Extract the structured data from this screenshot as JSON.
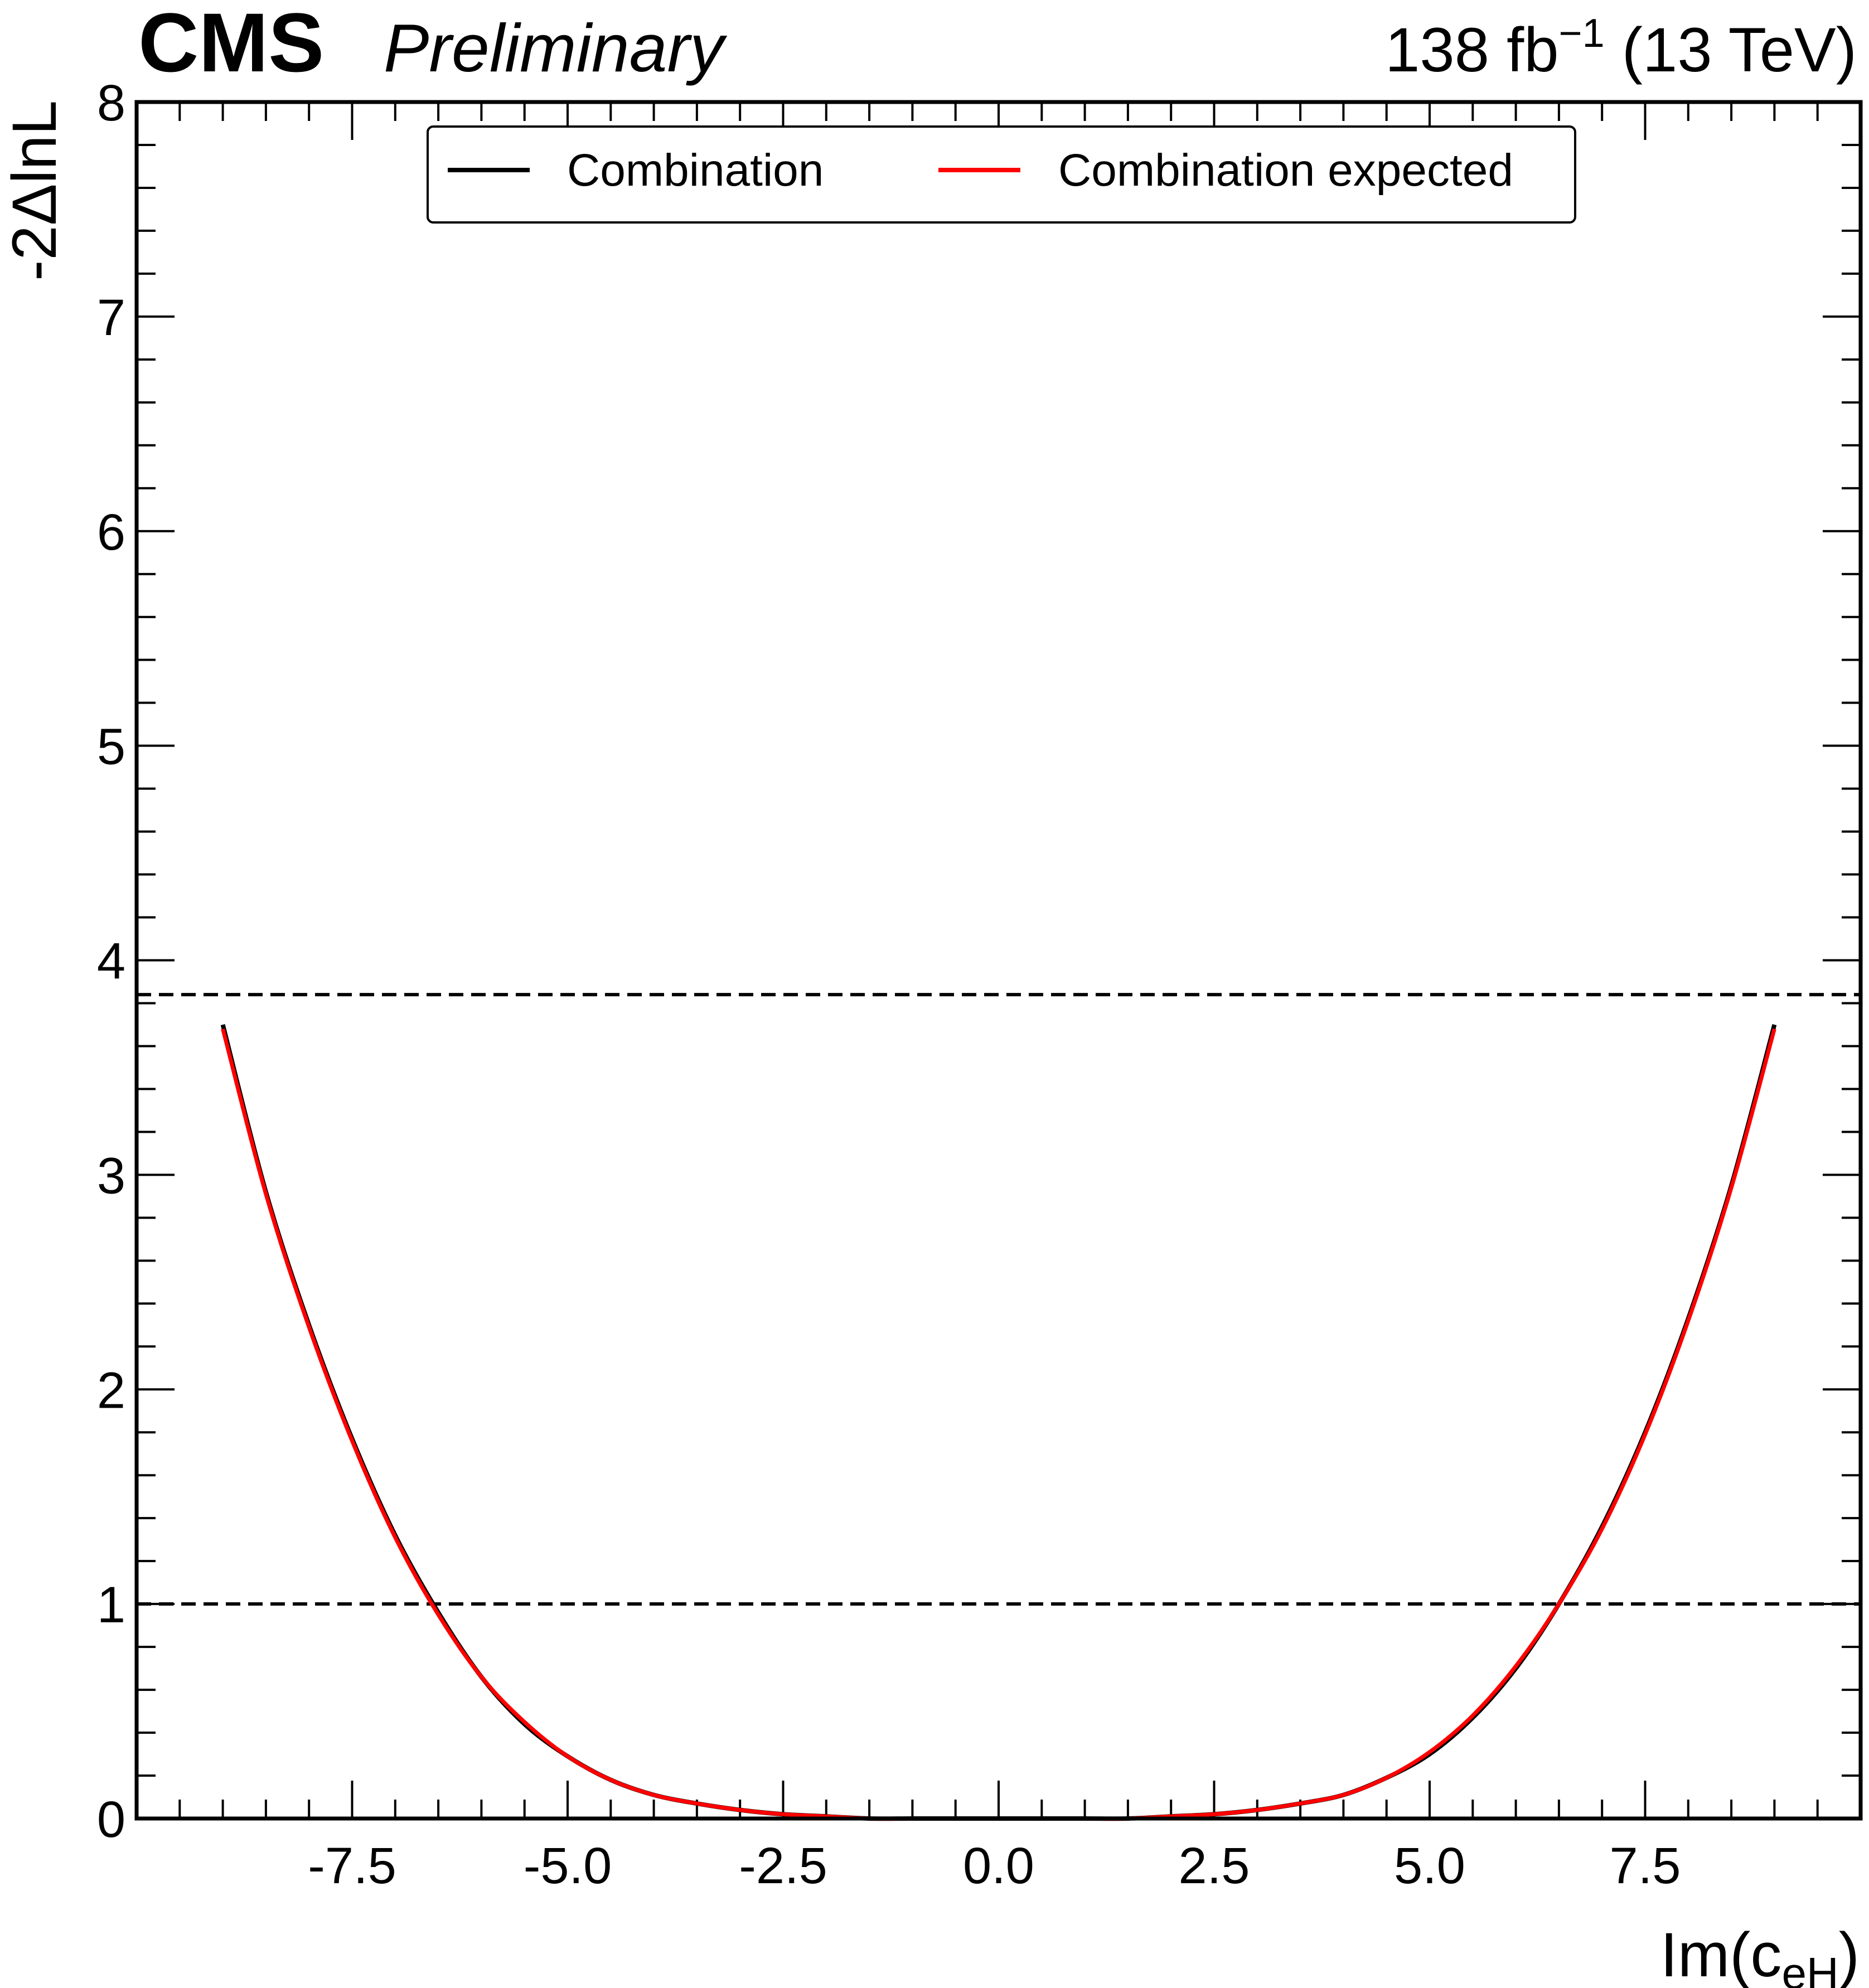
{
  "header": {
    "experiment": "CMS",
    "status": "Preliminary",
    "lumi_prefix": "138 fb",
    "lumi_exponent": "−1",
    "lumi_suffix": " (13 TeV)"
  },
  "chart_data": {
    "type": "line",
    "xlabel": {
      "main": "Im(c",
      "sub": "eH",
      "close": ")"
    },
    "ylabel": "-2ΔlnL",
    "xlim": [
      -10,
      10
    ],
    "ylim": [
      0,
      8
    ],
    "xticks": [
      -7.5,
      -5.0,
      -2.5,
      0.0,
      2.5,
      5.0,
      7.5
    ],
    "xtick_labels": [
      "-7.5",
      "-5.0",
      "-2.5",
      "0.0",
      "2.5",
      "5.0",
      "7.5"
    ],
    "yticks": [
      0,
      1,
      2,
      3,
      4,
      5,
      6,
      7,
      8
    ],
    "ytick_labels": [
      "0",
      "1",
      "2",
      "3",
      "4",
      "5",
      "6",
      "7",
      "8"
    ],
    "grid": false,
    "legend_position": "top-center",
    "reference_lines": [
      {
        "y": 1.0,
        "style": "dashed",
        "color": "#000000"
      },
      {
        "y": 3.84,
        "style": "dashed",
        "color": "#000000"
      }
    ],
    "series": [
      {
        "name": "Combination",
        "color": "#000000",
        "x": [
          -9.0,
          -8.5,
          -8.0,
          -7.5,
          -7.0,
          -6.5,
          -6.0,
          -5.5,
          -5.0,
          -4.5,
          -4.0,
          -3.5,
          -3.0,
          -2.5,
          -2.0,
          -1.5,
          -1.0,
          -0.5,
          0.0,
          0.5,
          1.0,
          1.5,
          2.0,
          2.5,
          3.0,
          3.5,
          4.0,
          4.5,
          5.0,
          5.5,
          6.0,
          6.5,
          7.0,
          7.5,
          8.0,
          8.5,
          9.0
        ],
        "y": [
          3.7,
          2.92,
          2.3,
          1.77,
          1.32,
          0.96,
          0.66,
          0.44,
          0.29,
          0.18,
          0.11,
          0.07,
          0.04,
          0.02,
          0.01,
          0.0,
          0.0,
          0.0,
          0.0,
          0.0,
          0.0,
          0.0,
          0.01,
          0.02,
          0.04,
          0.07,
          0.11,
          0.19,
          0.3,
          0.47,
          0.7,
          1.0,
          1.36,
          1.8,
          2.33,
          2.95,
          3.7
        ]
      },
      {
        "name": "Combination expected",
        "color": "#ff0000",
        "x": [
          -9.0,
          -8.5,
          -8.0,
          -7.5,
          -7.0,
          -6.5,
          -6.0,
          -5.5,
          -5.0,
          -4.5,
          -4.0,
          -3.5,
          -3.0,
          -2.5,
          -2.0,
          -1.5,
          -1.0,
          -0.5,
          0.0,
          0.5,
          1.0,
          1.5,
          2.0,
          2.5,
          3.0,
          3.5,
          4.0,
          4.5,
          5.0,
          5.5,
          6.0,
          6.5,
          7.0,
          7.5,
          8.0,
          8.5,
          9.0
        ],
        "y": [
          3.68,
          2.91,
          2.29,
          1.76,
          1.31,
          0.95,
          0.66,
          0.45,
          0.29,
          0.18,
          0.11,
          0.07,
          0.04,
          0.02,
          0.01,
          0.0,
          0.0,
          0.0,
          0.0,
          0.0,
          0.0,
          0.0,
          0.01,
          0.02,
          0.04,
          0.07,
          0.11,
          0.19,
          0.31,
          0.48,
          0.71,
          1.0,
          1.35,
          1.79,
          2.32,
          2.94,
          3.68
        ]
      }
    ]
  }
}
